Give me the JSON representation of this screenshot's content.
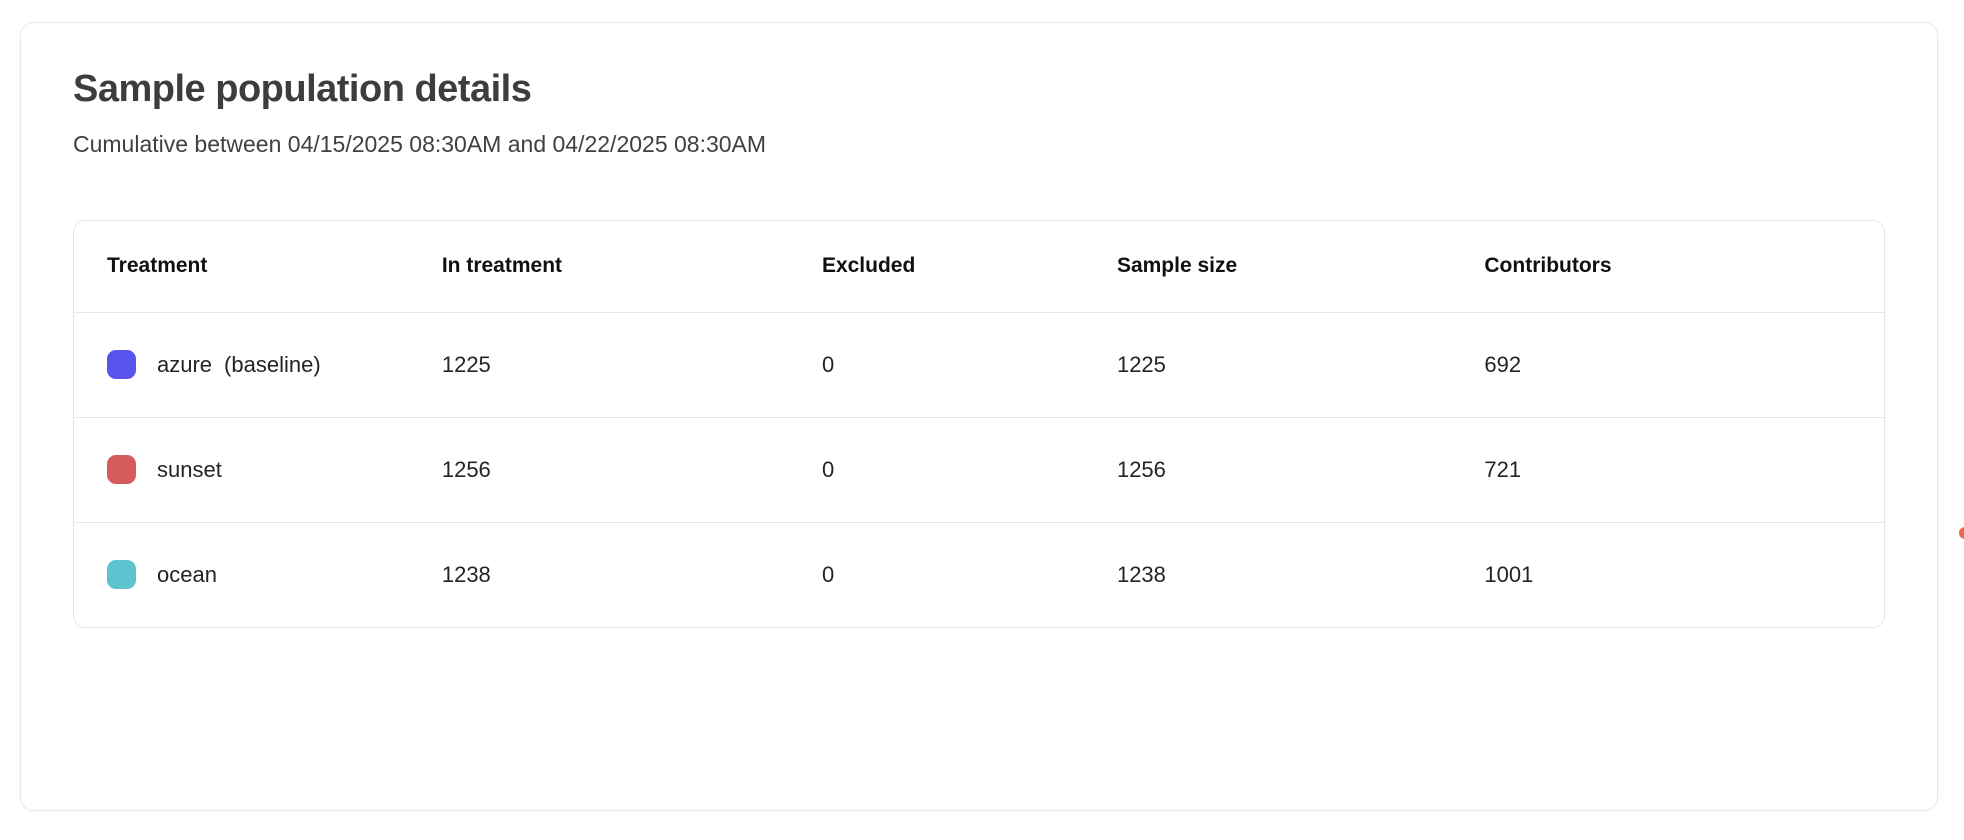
{
  "page": {
    "title": "Sample population details",
    "subtitle": "Cumulative between 04/15/2025 08:30AM and 04/22/2025 08:30AM"
  },
  "table": {
    "columns": [
      "Treatment",
      "In treatment",
      "Excluded",
      "Sample size",
      "Contributors"
    ],
    "rows": [
      {
        "name": "azure",
        "suffix": "(baseline)",
        "color": "#5753ec",
        "in_treatment": "1225",
        "excluded": "0",
        "sample_size": "1225",
        "contributors": "692"
      },
      {
        "name": "sunset",
        "suffix": "",
        "color": "#d65c5c",
        "in_treatment": "1256",
        "excluded": "0",
        "sample_size": "1256",
        "contributors": "721"
      },
      {
        "name": "ocean",
        "suffix": "",
        "color": "#5bc4ce",
        "in_treatment": "1238",
        "excluded": "0",
        "sample_size": "1238",
        "contributors": "1001"
      }
    ]
  },
  "artifacts": {
    "edge_dot_color": "#e66a4c"
  }
}
